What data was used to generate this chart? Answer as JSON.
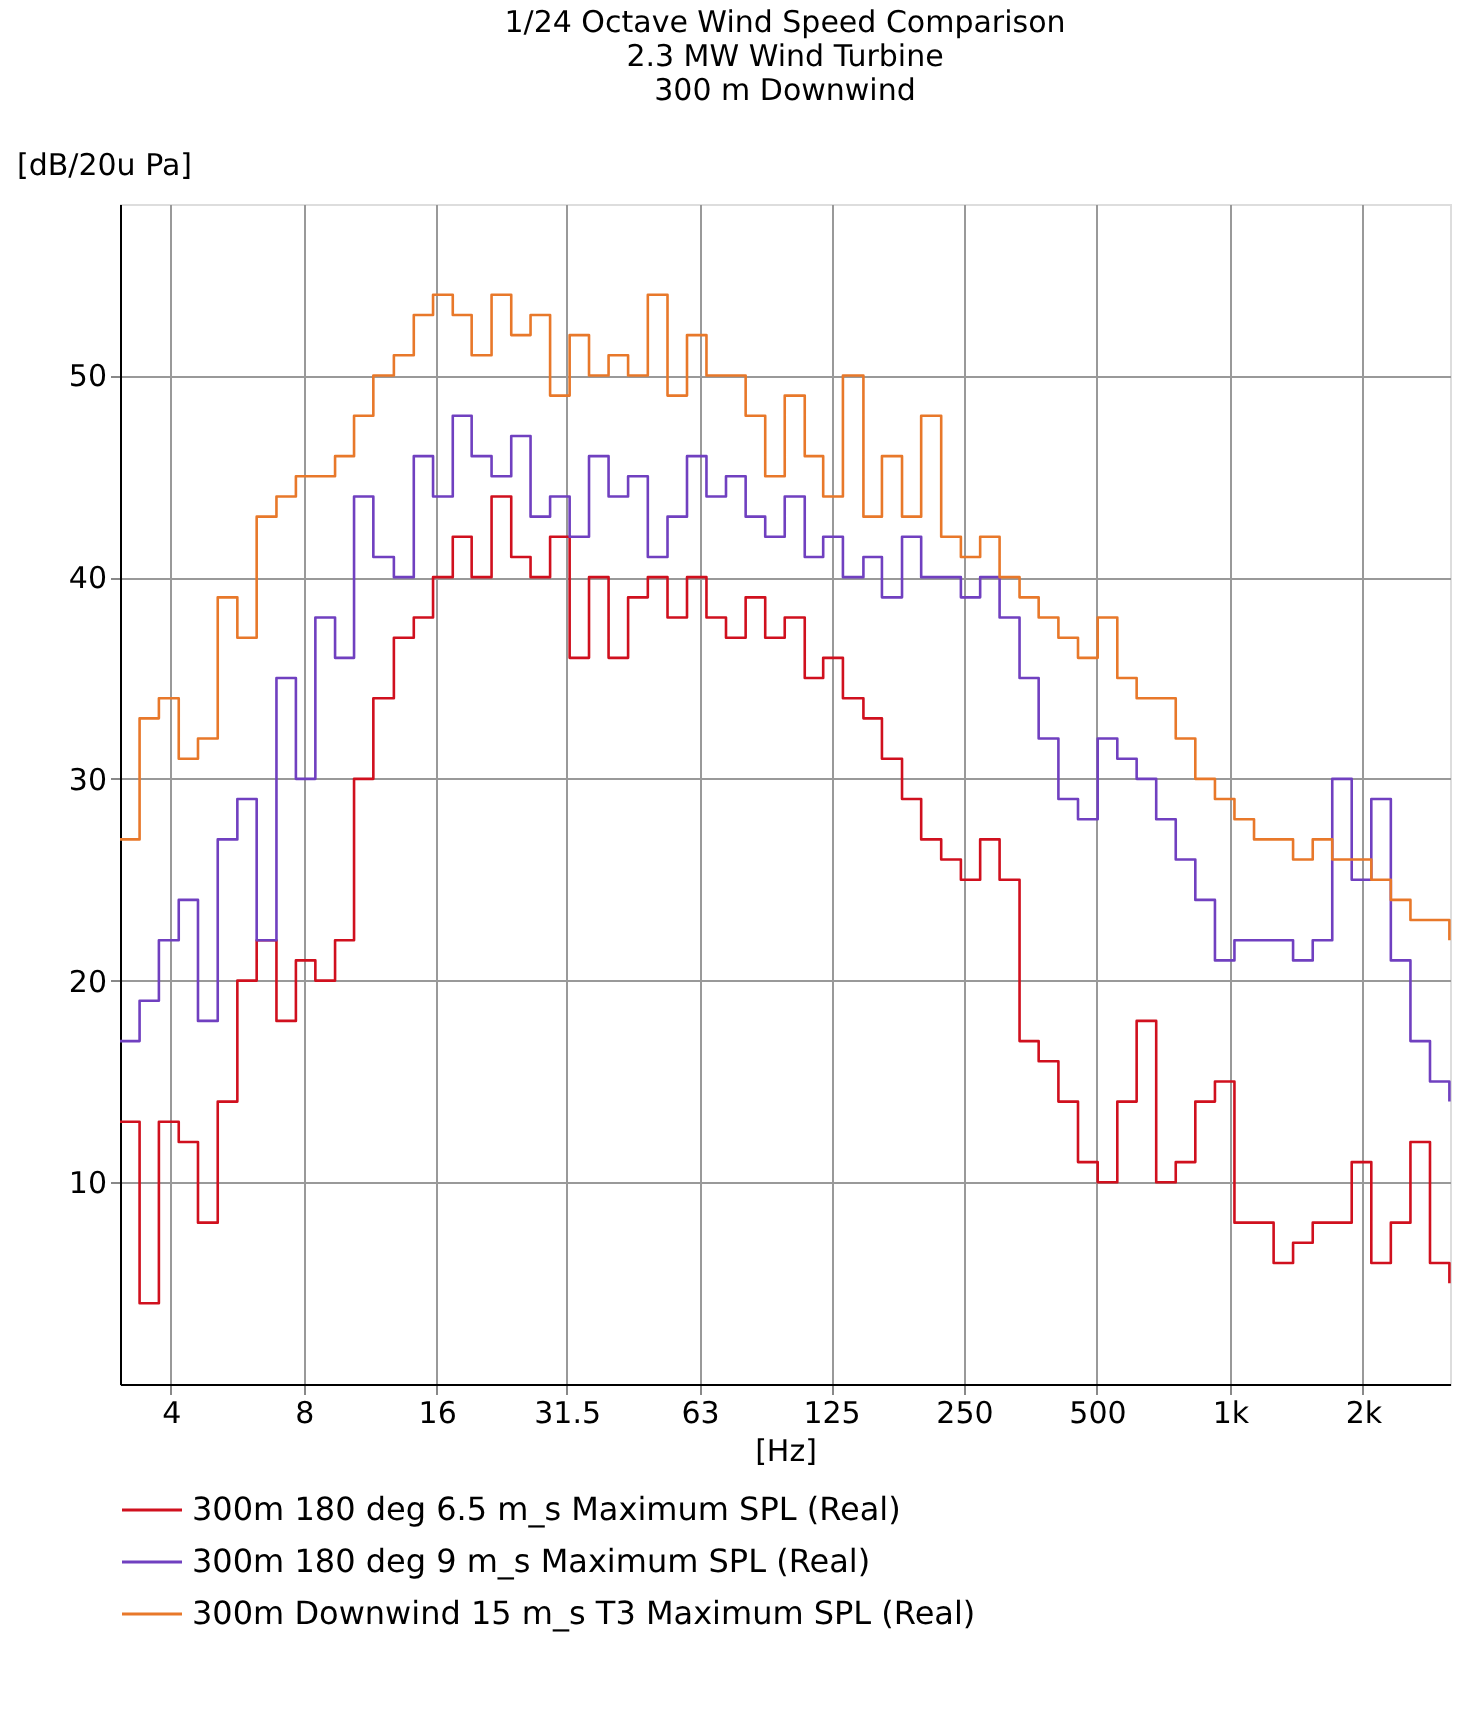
{
  "chart_data": {
    "type": "step",
    "title": "1/24 Octave Wind Speed Comparison\n2.3 MW Wind Turbine\n300 m Downwind",
    "xlabel": "[Hz]",
    "ylabel": "[dB/20u Pa]",
    "log": "x",
    "grid": true,
    "legend": "bottom",
    "line_style": "solid",
    "marker": "none",
    "xlim": [
      3.07,
      3150
    ],
    "xticks": [
      4,
      8,
      16,
      31.5,
      63,
      125,
      250,
      500,
      {
        "value": 1000,
        "label": "1k"
      },
      {
        "value": 2000,
        "label": "2k"
      }
    ],
    "ylim": [
      0,
      58.5
    ],
    "yticks": [
      10,
      20,
      30,
      40,
      50
    ],
    "x": [
      3.07,
      3.4,
      3.76,
      4.17,
      4.61,
      5.11,
      5.66,
      6.26,
      6.94,
      7.68,
      8.5,
      9.42,
      10.4,
      11.5,
      12.8,
      14.2,
      15.7,
      17.4,
      19.2,
      21.3,
      23.6,
      26.1,
      28.9,
      32,
      35.4,
      39.2,
      43.4,
      48.1,
      53.3,
      59,
      65.3,
      72.3,
      80.1,
      88.7,
      98.2,
      109,
      120,
      133,
      148,
      163,
      181,
      200,
      222,
      246,
      272,
      301,
      334,
      369,
      409,
      453,
      502,
      556,
      615,
      681,
      754,
      835,
      925,
      1024,
      1134,
      1256,
      1390,
      1540,
      1705,
      1887,
      2090,
      2314,
      2563,
      2838,
      3140
    ],
    "series": [
      {
        "name": "300m 180 deg 6.5 m_s Maximum SPL (Real)",
        "color": "#d0101e",
        "values": [
          13,
          4,
          13,
          12,
          8,
          14,
          20,
          22,
          18,
          21,
          20,
          22,
          30,
          34,
          37,
          38,
          40,
          42,
          40,
          44,
          41,
          40,
          42,
          36,
          40,
          36,
          39,
          40,
          38,
          40,
          38,
          37,
          39,
          37,
          38,
          35,
          36,
          34,
          33,
          31,
          29,
          27,
          26,
          25,
          27,
          25,
          17,
          16,
          14,
          11,
          10,
          14,
          18,
          10,
          11,
          14,
          15,
          8,
          8,
          6,
          7,
          8,
          8,
          11,
          6,
          8,
          12,
          6,
          5
        ]
      },
      {
        "name": "300m 180 deg 9 m_s Maximum SPL (Real)",
        "color": "#7040c0",
        "values": [
          17,
          19,
          22,
          24,
          18,
          27,
          29,
          22,
          35,
          30,
          38,
          36,
          44,
          41,
          40,
          46,
          44,
          48,
          46,
          45,
          47,
          43,
          44,
          42,
          46,
          44,
          45,
          41,
          43,
          46,
          44,
          45,
          43,
          42,
          44,
          41,
          42,
          40,
          41,
          39,
          42,
          40,
          40,
          39,
          40,
          38,
          35,
          32,
          29,
          28,
          32,
          31,
          30,
          28,
          26,
          24,
          21,
          22,
          22,
          22,
          21,
          22,
          30,
          25,
          29,
          21,
          17,
          15,
          14
        ]
      },
      {
        "name": "300m Downwind 15 m_s T3 Maximum SPL (Real)",
        "color": "#e8782a",
        "values": [
          27,
          33,
          34,
          31,
          32,
          39,
          37,
          43,
          44,
          45,
          45,
          46,
          48,
          50,
          51,
          53,
          54,
          53,
          51,
          54,
          52,
          53,
          49,
          52,
          50,
          51,
          50,
          54,
          49,
          52,
          50,
          50,
          48,
          45,
          49,
          46,
          44,
          50,
          43,
          46,
          43,
          48,
          42,
          41,
          42,
          40,
          39,
          38,
          37,
          36,
          38,
          35,
          34,
          34,
          32,
          30,
          29,
          28,
          27,
          27,
          26,
          27,
          26,
          26,
          25,
          24,
          23,
          23,
          22
        ]
      }
    ]
  }
}
